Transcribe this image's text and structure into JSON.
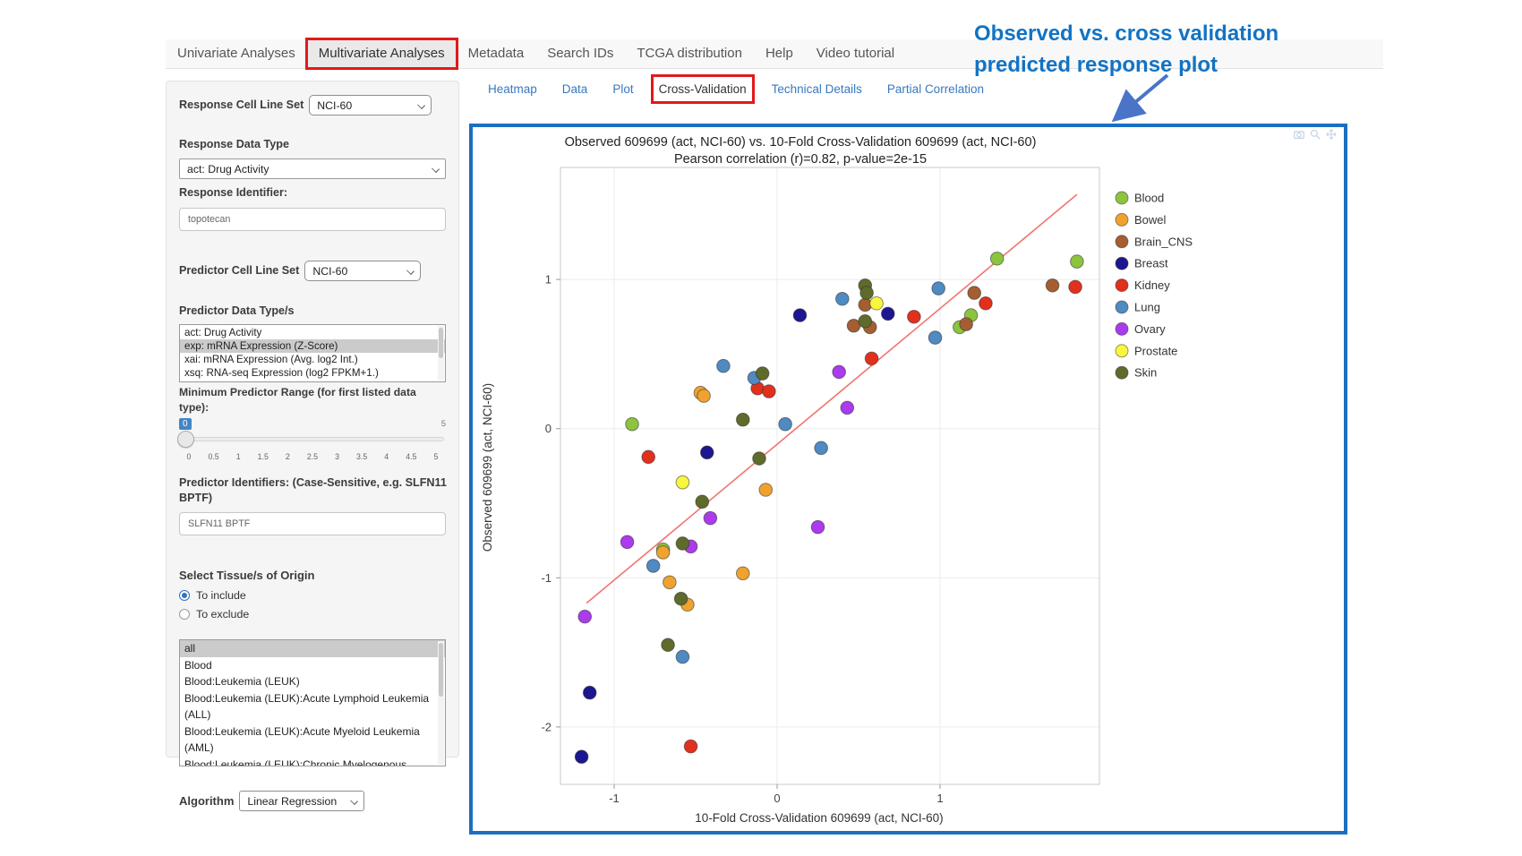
{
  "nav": {
    "tabs": [
      {
        "label": "Univariate Analyses"
      },
      {
        "label": "Multivariate Analyses"
      },
      {
        "label": "Metadata"
      },
      {
        "label": "Search IDs"
      },
      {
        "label": "TCGA distribution"
      },
      {
        "label": "Help"
      },
      {
        "label": "Video tutorial"
      }
    ]
  },
  "subtabs": {
    "tabs": [
      {
        "label": "Heatmap"
      },
      {
        "label": "Data"
      },
      {
        "label": "Plot"
      },
      {
        "label": "Cross-Validation"
      },
      {
        "label": "Technical Details"
      },
      {
        "label": "Partial Correlation"
      }
    ]
  },
  "annotation": {
    "line1": "Observed vs. cross validation",
    "line2": "predicted response plot",
    "color": "#1273c4"
  },
  "sidebar": {
    "response_cell_line_set": {
      "label": "Response Cell Line Set",
      "value": "NCI-60"
    },
    "response_data_type": {
      "label": "Response Data Type",
      "value": "act: Drug Activity"
    },
    "response_identifier": {
      "label": "Response Identifier:",
      "value": "topotecan"
    },
    "predictor_cell_line_set": {
      "label": "Predictor Cell Line Set",
      "value": "NCI-60"
    },
    "predictor_data_types": {
      "label": "Predictor Data Type/s",
      "options": [
        {
          "label": "act: Drug Activity"
        },
        {
          "label": "exp: mRNA Expression (Z-Score)"
        },
        {
          "label": "xai: mRNA Expression (Avg. log2 Int.)"
        },
        {
          "label": "xsq: RNA-seq Expression (log2 FPKM+1.)"
        }
      ],
      "selected_index": 1
    },
    "min_predictor_range": {
      "label": "Minimum Predictor Range (for first listed data type):",
      "value": "0",
      "max_label": "5",
      "ticks": [
        "0",
        "0.5",
        "1",
        "1.5",
        "2",
        "2.5",
        "3",
        "3.5",
        "4",
        "4.5",
        "5"
      ]
    },
    "predictor_identifiers": {
      "label": "Predictor Identifiers: (Case-Sensitive, e.g. SLFN11 BPTF)",
      "value": "SLFN11 BPTF"
    },
    "tissue_origin": {
      "label": "Select Tissue/s of Origin",
      "radios": [
        {
          "label": "To include",
          "checked": true
        },
        {
          "label": "To exclude",
          "checked": false
        }
      ],
      "options": [
        {
          "label": "all"
        },
        {
          "label": "Blood"
        },
        {
          "label": "Blood:Leukemia (LEUK)"
        },
        {
          "label": "Blood:Leukemia (LEUK):Acute Lymphoid Leukemia (ALL)"
        },
        {
          "label": "Blood:Leukemia (LEUK):Acute Myeloid Leukemia (AML)"
        },
        {
          "label": "Blood:Leukemia (LEUK):Chronic Myelogenous Leukemia (CML)"
        }
      ],
      "selected_index": 0
    },
    "algorithm": {
      "label": "Algorithm",
      "value": "Linear Regression"
    }
  },
  "chart_data": {
    "type": "scatter",
    "title": "Observed 609699 (act, NCI-60) vs. 10-Fold Cross-Validation 609699 (act, NCI-60)",
    "subtitle": "Pearson correlation (r)=0.82, p-value=2e-15",
    "xlabel": "10-Fold Cross-Validation 609699 (act, NCI-60)",
    "ylabel": "Observed 609699 (act, NCI-60)",
    "xlim": [
      -1.33,
      1.98
    ],
    "ylim": [
      -2.39,
      1.75
    ],
    "xticks": [
      -1,
      0,
      1
    ],
    "yticks": [
      1,
      0,
      -1,
      -2
    ],
    "grid": true,
    "legend_position": "right",
    "trend_line": {
      "color": "#f4736f",
      "x1": -1.17,
      "y1": -1.17,
      "x2": 1.84,
      "y2": 1.57
    },
    "series": [
      {
        "name": "Blood",
        "color": "#8cc43d",
        "points": [
          [
            -0.89,
            0.03
          ],
          [
            -0.7,
            -0.81
          ],
          [
            1.12,
            0.68
          ],
          [
            1.19,
            0.76
          ],
          [
            1.35,
            1.14
          ],
          [
            1.84,
            1.12
          ]
        ]
      },
      {
        "name": "Bowel",
        "color": "#efa22e",
        "points": [
          [
            -0.47,
            0.24
          ],
          [
            -0.45,
            0.22
          ],
          [
            -0.07,
            -0.41
          ],
          [
            -0.7,
            -0.83
          ],
          [
            -0.66,
            -1.03
          ],
          [
            -0.55,
            -1.18
          ],
          [
            -0.21,
            -0.97
          ]
        ]
      },
      {
        "name": "Brain_CNS",
        "color": "#a55e32",
        "points": [
          [
            0.54,
            0.83
          ],
          [
            0.47,
            0.69
          ],
          [
            0.57,
            0.68
          ],
          [
            1.21,
            0.91
          ],
          [
            1.16,
            0.7
          ],
          [
            1.69,
            0.96
          ]
        ]
      },
      {
        "name": "Breast",
        "color": "#1c1690",
        "points": [
          [
            0.14,
            0.76
          ],
          [
            0.68,
            0.77
          ],
          [
            -0.43,
            -0.16
          ],
          [
            -1.15,
            -1.77
          ],
          [
            -1.2,
            -2.2
          ]
        ]
      },
      {
        "name": "Kidney",
        "color": "#e2301c",
        "points": [
          [
            -0.12,
            0.27
          ],
          [
            -0.05,
            0.25
          ],
          [
            0.84,
            0.75
          ],
          [
            1.28,
            0.84
          ],
          [
            0.58,
            0.47
          ],
          [
            1.83,
            0.95
          ],
          [
            -0.79,
            -0.19
          ],
          [
            -0.53,
            -2.13
          ]
        ]
      },
      {
        "name": "Lung",
        "color": "#4f8ac2",
        "points": [
          [
            -0.33,
            0.42
          ],
          [
            -0.14,
            0.34
          ],
          [
            0.4,
            0.87
          ],
          [
            0.99,
            0.94
          ],
          [
            0.97,
            0.61
          ],
          [
            0.05,
            0.03
          ],
          [
            -0.76,
            -0.92
          ],
          [
            -0.58,
            -1.53
          ],
          [
            0.27,
            -0.13
          ]
        ]
      },
      {
        "name": "Ovary",
        "color": "#ab3bec",
        "points": [
          [
            0.38,
            0.38
          ],
          [
            0.43,
            0.14
          ],
          [
            -0.41,
            -0.6
          ],
          [
            -0.92,
            -0.76
          ],
          [
            -0.53,
            -0.79
          ],
          [
            -1.18,
            -1.26
          ],
          [
            0.25,
            -0.66
          ]
        ]
      },
      {
        "name": "Prostate",
        "color": "#f8f73c",
        "points": [
          [
            0.61,
            0.84
          ],
          [
            -0.58,
            -0.36
          ]
        ]
      },
      {
        "name": "Skin",
        "color": "#5e6b2a",
        "points": [
          [
            -0.09,
            0.37
          ],
          [
            -0.21,
            0.06
          ],
          [
            0.54,
            0.96
          ],
          [
            0.55,
            0.91
          ],
          [
            0.54,
            0.72
          ],
          [
            -0.11,
            -0.2
          ],
          [
            -0.46,
            -0.49
          ],
          [
            -0.58,
            -0.77
          ],
          [
            -0.59,
            -1.14
          ],
          [
            -0.67,
            -1.45
          ]
        ]
      }
    ]
  }
}
